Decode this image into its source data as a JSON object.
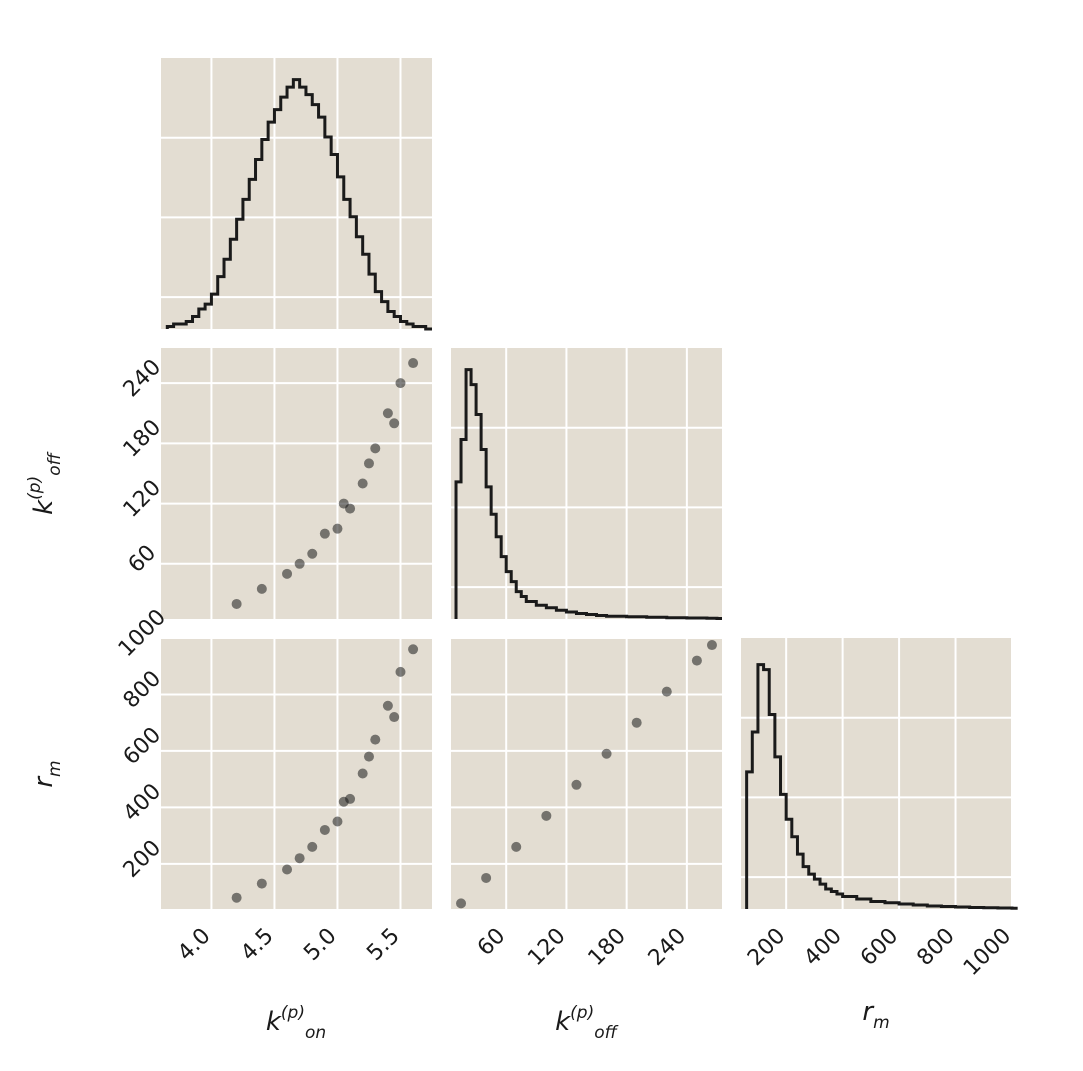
{
  "chart_data": {
    "type": "corner",
    "title": "",
    "colors": {
      "panel_bg": "#e3ddd2",
      "grid": "#ffffff",
      "ink": "#1a1a1a"
    },
    "grid": true,
    "parameters": [
      {
        "key": "kon",
        "symbol": "k",
        "sup": "(p)",
        "sub": "on",
        "range": [
          3.6,
          5.75
        ]
      },
      {
        "key": "koff",
        "symbol": "k",
        "sup": "(p)",
        "sub": "off",
        "range": [
          5,
          275
        ]
      },
      {
        "key": "rm",
        "symbol": "r",
        "sup": "",
        "sub": "m",
        "range": [
          40,
          1000
        ]
      }
    ],
    "ticks": {
      "kon": [
        4.0,
        4.5,
        5.0,
        5.5
      ],
      "koff": [
        60,
        120,
        180,
        240
      ],
      "rm": [
        200,
        400,
        600,
        800,
        1000
      ]
    },
    "tick_labels": {
      "kon": [
        "4.0",
        "4.5",
        "5.0",
        "5.5"
      ],
      "koff": [
        "60",
        "120",
        "180",
        "240"
      ],
      "rm": [
        "200",
        "400",
        "600",
        "800",
        "1000"
      ]
    },
    "histograms": [
      {
        "param": "kon",
        "bins": [
          3.65,
          3.7,
          3.75,
          3.8,
          3.85,
          3.9,
          3.95,
          4.0,
          4.05,
          4.1,
          4.15,
          4.2,
          4.25,
          4.3,
          4.35,
          4.4,
          4.45,
          4.5,
          4.55,
          4.6,
          4.65,
          4.7,
          4.75,
          4.8,
          4.85,
          4.9,
          4.95,
          5.0,
          5.05,
          5.1,
          5.15,
          5.2,
          5.25,
          5.3,
          5.35,
          5.4,
          5.45,
          5.5,
          5.55,
          5.6,
          5.65,
          5.7
        ],
        "values": [
          0.01,
          0.02,
          0.02,
          0.03,
          0.05,
          0.08,
          0.1,
          0.14,
          0.21,
          0.28,
          0.36,
          0.44,
          0.52,
          0.6,
          0.68,
          0.76,
          0.83,
          0.88,
          0.93,
          0.97,
          1.0,
          0.97,
          0.94,
          0.9,
          0.85,
          0.77,
          0.7,
          0.61,
          0.52,
          0.45,
          0.37,
          0.3,
          0.22,
          0.15,
          0.11,
          0.07,
          0.05,
          0.03,
          0.02,
          0.01,
          0.01,
          0.0
        ]
      },
      {
        "param": "koff",
        "bins": [
          10,
          15,
          20,
          25,
          30,
          35,
          40,
          45,
          50,
          55,
          60,
          65,
          70,
          75,
          80,
          90,
          100,
          110,
          120,
          130,
          140,
          150,
          160,
          180,
          200,
          220,
          240,
          260,
          270
        ],
        "values": [
          0.55,
          0.72,
          1.0,
          0.94,
          0.82,
          0.68,
          0.53,
          0.42,
          0.33,
          0.25,
          0.19,
          0.15,
          0.11,
          0.09,
          0.07,
          0.055,
          0.045,
          0.035,
          0.028,
          0.022,
          0.018,
          0.014,
          0.011,
          0.009,
          0.007,
          0.005,
          0.004,
          0.003,
          0.002
        ]
      },
      {
        "param": "rm",
        "bins": [
          60,
          80,
          100,
          120,
          140,
          160,
          180,
          200,
          220,
          240,
          260,
          280,
          300,
          320,
          340,
          360,
          380,
          400,
          450,
          500,
          550,
          600,
          650,
          700,
          750,
          800,
          850,
          900,
          950,
          1000
        ],
        "values": [
          0.55,
          0.71,
          0.98,
          0.96,
          0.78,
          0.61,
          0.46,
          0.36,
          0.29,
          0.22,
          0.17,
          0.14,
          0.12,
          0.1,
          0.08,
          0.07,
          0.06,
          0.05,
          0.04,
          0.03,
          0.025,
          0.02,
          0.016,
          0.012,
          0.01,
          0.008,
          0.006,
          0.005,
          0.004,
          0.003
        ]
      }
    ],
    "scatter_panels": [
      {
        "x": "kon",
        "y": "koff",
        "points": [
          [
            4.2,
            20
          ],
          [
            4.4,
            35
          ],
          [
            4.6,
            50
          ],
          [
            4.8,
            70
          ],
          [
            5.0,
            95
          ],
          [
            5.1,
            115
          ],
          [
            5.2,
            140
          ],
          [
            5.3,
            175
          ],
          [
            5.4,
            210
          ],
          [
            5.5,
            240
          ],
          [
            5.6,
            260
          ],
          [
            5.45,
            200
          ],
          [
            5.25,
            160
          ],
          [
            5.05,
            120
          ],
          [
            4.9,
            90
          ],
          [
            4.7,
            60
          ]
        ]
      },
      {
        "x": "kon",
        "y": "rm",
        "points": [
          [
            4.2,
            80
          ],
          [
            4.4,
            130
          ],
          [
            4.6,
            180
          ],
          [
            4.8,
            260
          ],
          [
            5.0,
            350
          ],
          [
            5.1,
            430
          ],
          [
            5.2,
            520
          ],
          [
            5.3,
            640
          ],
          [
            5.4,
            760
          ],
          [
            5.5,
            880
          ],
          [
            5.6,
            960
          ],
          [
            5.45,
            720
          ],
          [
            5.25,
            580
          ],
          [
            5.05,
            420
          ],
          [
            4.9,
            320
          ],
          [
            4.7,
            220
          ]
        ]
      },
      {
        "x": "koff",
        "y": "rm",
        "points": [
          [
            15,
            60
          ],
          [
            40,
            150
          ],
          [
            70,
            260
          ],
          [
            100,
            370
          ],
          [
            130,
            480
          ],
          [
            160,
            590
          ],
          [
            190,
            700
          ],
          [
            220,
            810
          ],
          [
            250,
            920
          ],
          [
            265,
            975
          ]
        ]
      }
    ],
    "axis_labels": {
      "kon": {
        "main": "k",
        "sup": "(p)",
        "sub": "on"
      },
      "koff": {
        "main": "k",
        "sup": "(p)",
        "sub": "off"
      },
      "rm": {
        "main": "r",
        "sup": "",
        "sub": "m"
      }
    }
  }
}
